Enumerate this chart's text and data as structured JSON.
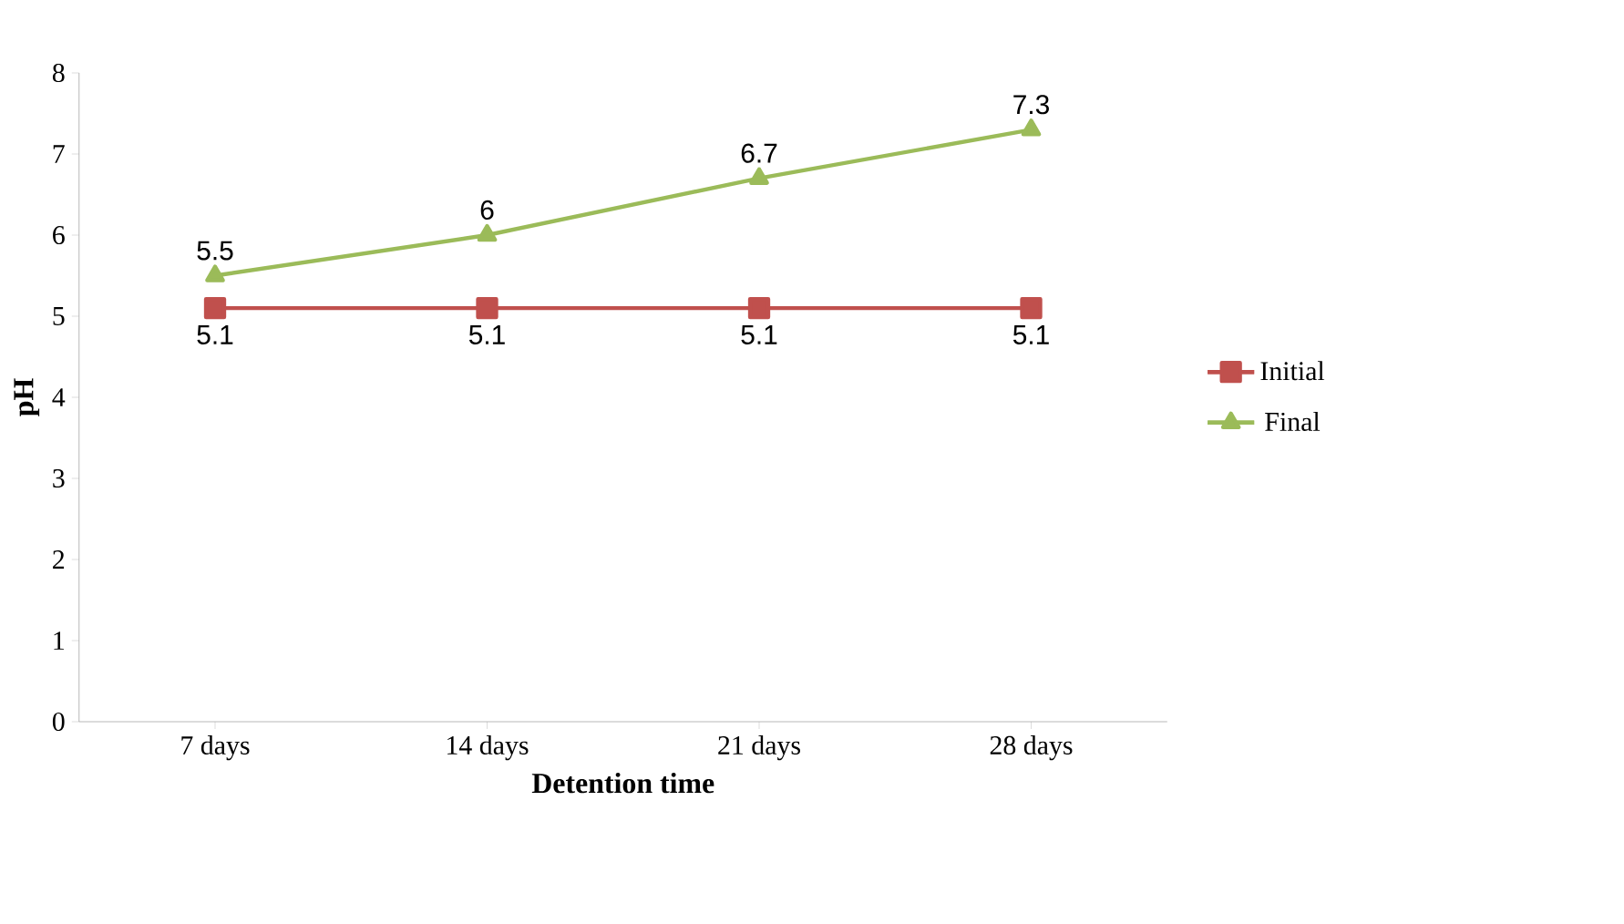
{
  "chart_data": {
    "type": "line",
    "xlabel": "Detention time",
    "ylabel": "pH",
    "categories": [
      "7 days",
      "14 days",
      "21 days",
      "28 days"
    ],
    "series": [
      {
        "name": "Initial",
        "color": "#c0504d",
        "marker": "square",
        "values": [
          5.1,
          5.1,
          5.1,
          5.1
        ]
      },
      {
        "name": "Final",
        "color": "#9bbb59",
        "marker": "triangle",
        "values": [
          5.5,
          6,
          6.7,
          7.3
        ]
      }
    ],
    "ylim": [
      0,
      8
    ],
    "yticks": [
      0,
      1,
      2,
      3,
      4,
      5,
      6,
      7,
      8
    ],
    "grid": false,
    "legend": "right",
    "data_labels": true,
    "line_style": "solid"
  }
}
